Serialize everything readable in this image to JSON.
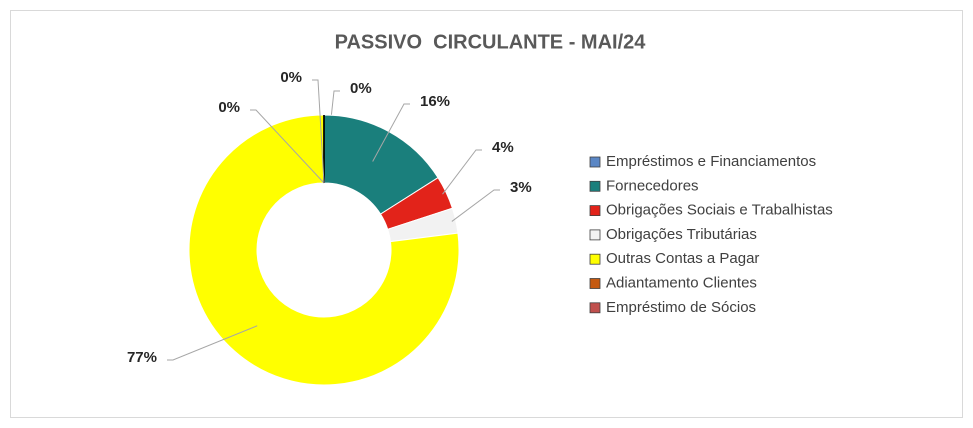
{
  "chart_data": {
    "type": "doughnut",
    "title": "PASSIVO  CIRCULANTE - MAI/24",
    "categories": [
      "Empréstimos e Financiamentos",
      "Fornecedores",
      "Obrigações Sociais e Trabalhistas",
      "Obrigações Tributárias",
      "Outras Contas a Pagar",
      "Adiantamento Clientes",
      "Empréstimo de Sócios"
    ],
    "values": [
      0,
      16,
      4,
      3,
      77,
      0,
      0
    ],
    "value_labels": [
      "0%",
      "16%",
      "4%",
      "3%",
      "77%",
      "0%",
      "0%"
    ],
    "colors": [
      "#5b87c5",
      "#1a7f7c",
      "#e2231a",
      "#f2f2f2",
      "#ffff00",
      "#c55a11",
      "#c0504d"
    ],
    "legend": "right"
  }
}
